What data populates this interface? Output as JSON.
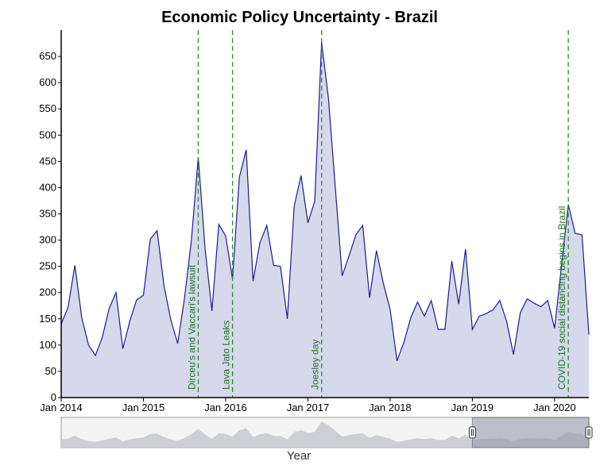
{
  "chart_data": {
    "type": "area",
    "title": "Economic Policy Uncertainty - Brazil",
    "xlabel": "Year",
    "ylabel": "",
    "ylim": [
      0,
      700
    ],
    "yticks": [
      0,
      50,
      100,
      150,
      200,
      250,
      300,
      350,
      400,
      450,
      500,
      550,
      600,
      650
    ],
    "xticks": [
      {
        "label": "Jan 2014",
        "date": "2014-01"
      },
      {
        "label": "Jan 2015",
        "date": "2015-01"
      },
      {
        "label": "Jan 2016",
        "date": "2016-01"
      },
      {
        "label": "Jan 2017",
        "date": "2017-01"
      },
      {
        "label": "Jan 2018",
        "date": "2018-01"
      },
      {
        "label": "Jan 2019",
        "date": "2019-01"
      },
      {
        "label": "Jan 2020",
        "date": "2020-01"
      }
    ],
    "x_range": [
      "2014-01",
      "2020-06"
    ],
    "series": [
      {
        "name": "",
        "x": [
          "2014-01",
          "2014-02",
          "2014-03",
          "2014-04",
          "2014-05",
          "2014-06",
          "2014-07",
          "2014-08",
          "2014-09",
          "2014-10",
          "2014-11",
          "2014-12",
          "2015-01",
          "2015-02",
          "2015-03",
          "2015-04",
          "2015-05",
          "2015-06",
          "2015-07",
          "2015-08",
          "2015-09",
          "2015-10",
          "2015-11",
          "2015-12",
          "2016-01",
          "2016-02",
          "2016-03",
          "2016-04",
          "2016-05",
          "2016-06",
          "2016-07",
          "2016-08",
          "2016-09",
          "2016-10",
          "2016-11",
          "2016-12",
          "2017-01",
          "2017-02",
          "2017-03",
          "2017-04",
          "2017-05",
          "2017-06",
          "2017-07",
          "2017-08",
          "2017-09",
          "2017-10",
          "2017-11",
          "2017-12",
          "2018-01",
          "2018-02",
          "2018-03",
          "2018-04",
          "2018-05",
          "2018-06",
          "2018-07",
          "2018-08",
          "2018-09",
          "2018-10",
          "2018-11",
          "2018-12",
          "2019-01",
          "2019-02",
          "2019-03",
          "2019-04",
          "2019-05",
          "2019-06",
          "2019-07",
          "2019-08",
          "2019-09",
          "2019-10",
          "2019-11",
          "2019-12",
          "2020-01",
          "2020-02",
          "2020-03",
          "2020-04",
          "2020-05",
          "2020-06"
        ],
        "values": [
          140,
          172,
          252,
          152,
          100,
          80,
          115,
          170,
          200,
          93,
          145,
          186,
          195,
          302,
          318,
          213,
          148,
          103,
          190,
          300,
          458,
          283,
          165,
          330,
          308,
          226,
          420,
          472,
          222,
          295,
          328,
          252,
          250,
          150,
          365,
          423,
          333,
          374,
          677,
          570,
          400,
          232,
          270,
          310,
          328,
          190,
          280,
          218,
          168,
          70,
          105,
          152,
          182,
          155,
          185,
          130,
          130,
          260,
          178,
          283,
          130,
          155,
          160,
          167,
          185,
          145,
          82,
          162,
          188,
          180,
          173,
          185,
          132,
          250,
          368,
          313,
          310,
          120
        ]
      }
    ],
    "annotations": [
      {
        "date": "2015-09",
        "label": "Dirceu's and Vaccari's lawsuit"
      },
      {
        "date": "2016-02",
        "label": "Lava Jato Leaks"
      },
      {
        "date": "2017-03",
        "label": "Joesley day"
      },
      {
        "date": "2020-03",
        "label": "COVID-19 social distancing begins in Brazil"
      }
    ],
    "colors": {
      "line": "#1c1f8a",
      "fill": "#d6d8ec",
      "annotation": "#2e8b2e",
      "annotation_text": "#1a7a1a",
      "navigator_fill": "#c9cbd1",
      "navigator_selected": "#8e95a6"
    },
    "navigator": {
      "range_start": "2014-01",
      "range_end": "2020-06",
      "selected_start": "2019-01",
      "selected_end": "2020-06"
    }
  }
}
